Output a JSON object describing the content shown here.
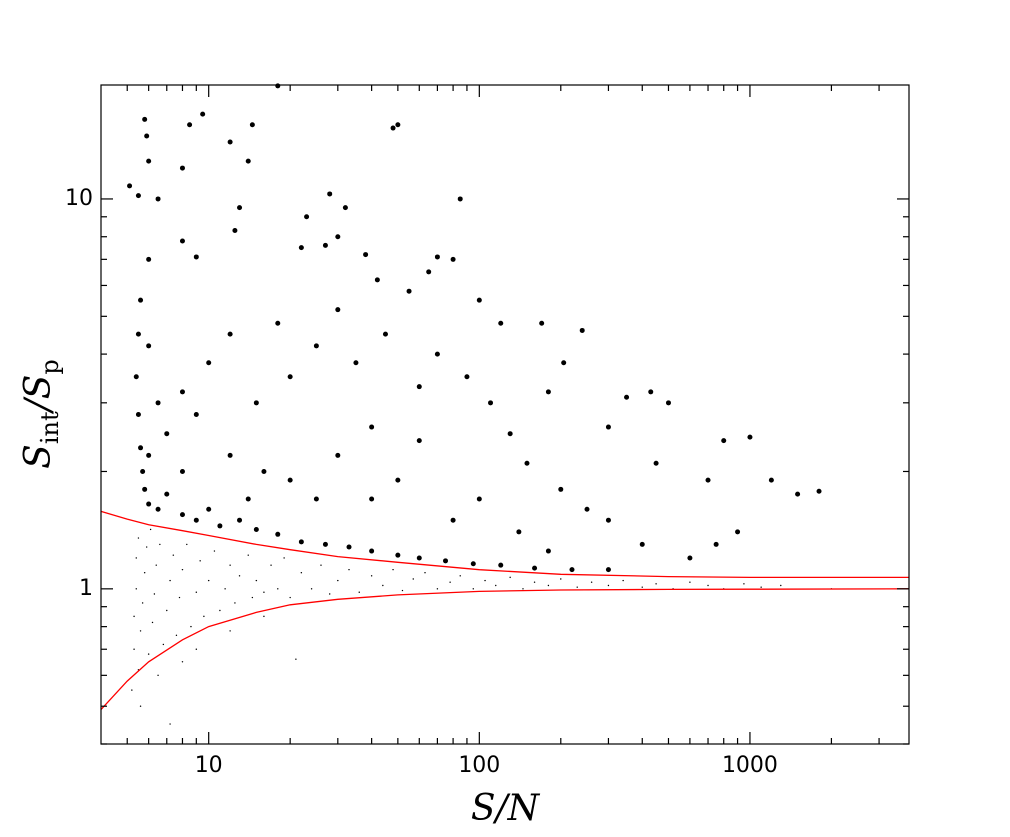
{
  "chart_data": {
    "type": "scatter",
    "xlabel": "S/N",
    "ylabel": [
      "S",
      "int",
      "/S",
      "p"
    ],
    "xscale": "log",
    "yscale": "log",
    "xlim": [
      4,
      3870
    ],
    "ylim": [
      0.4,
      19.6
    ],
    "xticks": [
      10,
      100,
      1000
    ],
    "yticks": [
      1,
      10
    ],
    "xminor": [
      5,
      6,
      7,
      8,
      9,
      20,
      30,
      40,
      50,
      60,
      70,
      80,
      90,
      200,
      300,
      400,
      500,
      600,
      700,
      800,
      900,
      2000,
      3000
    ],
    "yminor": [
      0.4,
      0.5,
      0.6,
      0.7,
      0.8,
      0.9,
      2,
      3,
      4,
      5,
      6,
      7,
      8,
      9
    ],
    "series": [
      {
        "type": "scatter",
        "color": "#000000",
        "marker_size": 3.5,
        "x": [
          5.1,
          5.5,
          5.8,
          5.9,
          6,
          6.5,
          8,
          8.5,
          9.5,
          12,
          14,
          14.5,
          18,
          13,
          12.5,
          8,
          9,
          6,
          22,
          23,
          27,
          28,
          32,
          30,
          38,
          48,
          50,
          85,
          70,
          80,
          100,
          65,
          42,
          55,
          120,
          170,
          240,
          205,
          180,
          300,
          350,
          430,
          500,
          450,
          700,
          800,
          1000,
          1200,
          1500,
          1800,
          900,
          750,
          600,
          400,
          300,
          250,
          200,
          150,
          130,
          110,
          90,
          70,
          60,
          45,
          35,
          30,
          25,
          20,
          18,
          15,
          12,
          10,
          9,
          8,
          7,
          6.5,
          6,
          5.6,
          5.5,
          5.4,
          5.5,
          5.6,
          5.7,
          5.8,
          6,
          6.5,
          7,
          8,
          9,
          10,
          11,
          13,
          15,
          18,
          22,
          27,
          33,
          40,
          50,
          60,
          75,
          95,
          120,
          160,
          220,
          300,
          12,
          16,
          20,
          25,
          30,
          40,
          50,
          60,
          80,
          100,
          140,
          180,
          40,
          14,
          8,
          6
        ],
        "values": [
          10.8,
          10.2,
          16,
          14.5,
          12.5,
          10,
          12,
          15.5,
          16.5,
          14,
          12.5,
          15.5,
          19.5,
          9.5,
          8.3,
          7.8,
          7.1,
          7,
          7.5,
          9,
          7.6,
          10.3,
          9.5,
          8,
          7.2,
          15.2,
          15.5,
          10,
          7.1,
          7,
          5.5,
          6.5,
          6.2,
          5.8,
          4.8,
          4.8,
          4.6,
          3.8,
          3.2,
          2.6,
          3.1,
          3.2,
          3.0,
          2.1,
          1.9,
          2.4,
          2.45,
          1.9,
          1.75,
          1.78,
          1.4,
          1.3,
          1.2,
          1.3,
          1.5,
          1.6,
          1.8,
          2.1,
          2.5,
          3.0,
          3.5,
          4.0,
          3.3,
          4.5,
          3.8,
          5.2,
          4.2,
          3.5,
          4.8,
          3.0,
          4.5,
          3.8,
          2.8,
          3.2,
          2.5,
          3.0,
          4.2,
          5.5,
          4.5,
          3.5,
          2.8,
          2.3,
          2.0,
          1.8,
          1.65,
          1.6,
          1.75,
          1.55,
          1.5,
          1.6,
          1.45,
          1.5,
          1.42,
          1.38,
          1.32,
          1.3,
          1.28,
          1.25,
          1.22,
          1.2,
          1.18,
          1.16,
          1.15,
          1.13,
          1.12,
          1.12,
          2.2,
          2.0,
          1.9,
          1.7,
          2.2,
          2.6,
          1.9,
          2.4,
          1.5,
          1.7,
          1.4,
          1.25,
          1.7,
          1.7,
          2.0,
          2.2
        ]
      },
      {
        "type": "scatter",
        "color": "#000000",
        "marker_size": 1,
        "x": [
          5.2,
          5.3,
          5.3,
          5.4,
          5.4,
          5.5,
          5.5,
          5.6,
          5.7,
          5.8,
          5.9,
          6,
          6.2,
          6.3,
          6.4,
          6.6,
          6.8,
          7,
          7.2,
          7.4,
          7.6,
          7.8,
          8,
          8.3,
          8.6,
          9,
          9.3,
          9.6,
          10,
          10.5,
          11,
          11.5,
          12,
          12.5,
          13,
          14,
          14.5,
          15,
          16,
          17,
          18,
          19,
          20,
          21,
          22,
          24,
          26,
          28,
          30,
          33,
          36,
          40,
          44,
          48,
          52,
          57,
          63,
          70,
          78,
          85,
          95,
          105,
          115,
          130,
          145,
          160,
          180,
          200,
          230,
          260,
          300,
          340,
          400,
          450,
          520,
          600,
          700,
          800,
          950,
          1100,
          1300,
          2000,
          7.2,
          6.5,
          9,
          12,
          16,
          5.6,
          6.1,
          8
        ],
        "values": [
          0.55,
          0.7,
          0.85,
          1.0,
          1.2,
          1.35,
          0.62,
          0.78,
          0.92,
          1.1,
          1.28,
          0.68,
          0.82,
          0.97,
          1.15,
          1.3,
          0.72,
          0.88,
          1.05,
          1.22,
          0.76,
          0.95,
          1.12,
          1.3,
          0.8,
          0.98,
          1.18,
          0.85,
          1.05,
          1.25,
          0.88,
          1.0,
          1.15,
          0.92,
          1.08,
          1.22,
          0.95,
          1.05,
          0.98,
          1.15,
          1.0,
          1.2,
          0.95,
          0.66,
          1.1,
          1.0,
          1.15,
          0.97,
          1.05,
          1.12,
          0.98,
          1.08,
          1.02,
          1.12,
          0.99,
          1.06,
          1.1,
          1.0,
          1.04,
          1.08,
          1.0,
          1.05,
          1.02,
          1.07,
          1.0,
          1.04,
          1.02,
          1.06,
          1.01,
          1.04,
          1.02,
          1.05,
          1.01,
          1.03,
          1.0,
          1.04,
          1.02,
          1.0,
          1.03,
          1.01,
          1.02,
          1.0,
          0.45,
          0.6,
          0.7,
          0.78,
          0.85,
          0.5,
          1.42,
          0.65
        ]
      },
      {
        "type": "line",
        "color": "#ff0000",
        "x": [
          4,
          5,
          6,
          8,
          10,
          15,
          20,
          30,
          50,
          100,
          200,
          500,
          1000,
          3870
        ],
        "values": [
          1.58,
          1.51,
          1.46,
          1.41,
          1.37,
          1.3,
          1.26,
          1.21,
          1.17,
          1.12,
          1.09,
          1.075,
          1.07,
          1.07
        ]
      },
      {
        "type": "line",
        "color": "#ff0000",
        "x": [
          4,
          5,
          6,
          8,
          10,
          15,
          20,
          30,
          50,
          100,
          200,
          500,
          1000,
          3870
        ],
        "values": [
          0.49,
          0.58,
          0.65,
          0.74,
          0.8,
          0.87,
          0.91,
          0.94,
          0.965,
          0.985,
          0.993,
          0.997,
          0.998,
          1.0
        ]
      }
    ]
  }
}
